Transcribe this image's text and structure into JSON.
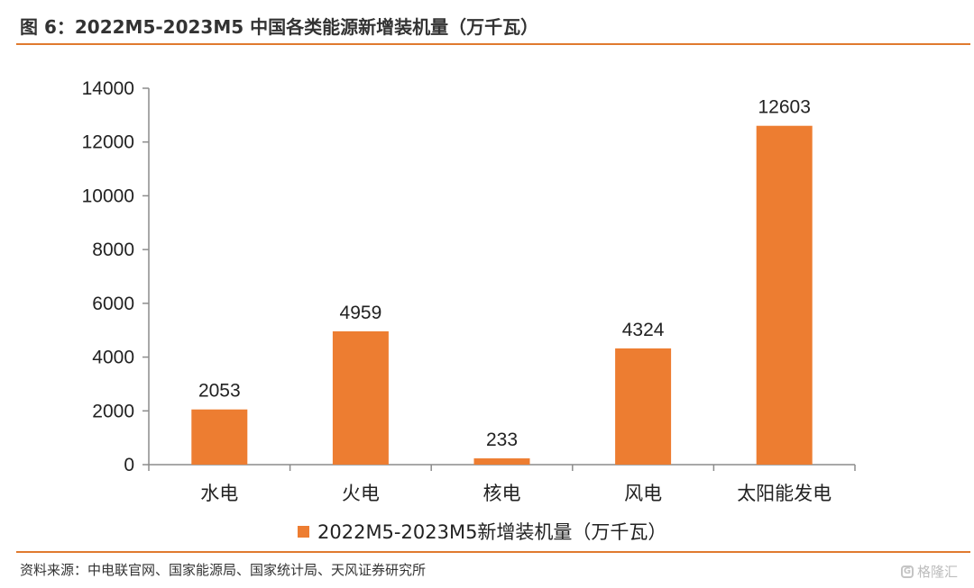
{
  "figure_title": "图 6：2022M5-2023M5 中国各类能源新增装机量（万千瓦）",
  "source": "资料来源：中电联官网、国家能源局、国家统计局、天风证券研究所",
  "watermark": {
    "text": "格隆汇",
    "icon": "glh-logo-icon"
  },
  "colors": {
    "bar": "#ed7d31",
    "rule": "#e07a2f",
    "axis": "#8c8c8c"
  },
  "chart_data": {
    "type": "bar",
    "categories": [
      "水电",
      "火电",
      "核电",
      "风电",
      "太阳能发电"
    ],
    "series": [
      {
        "name": "2022M5-2023M5新增装机量（万千瓦）",
        "values": [
          2053,
          4959,
          233,
          4324,
          12603
        ]
      }
    ],
    "data_labels": [
      "2053",
      "4959",
      "233",
      "4324",
      "12603"
    ],
    "yticks": [
      "0",
      "2000",
      "4000",
      "6000",
      "8000",
      "10000",
      "12000",
      "14000"
    ],
    "ylim": [
      0,
      14000
    ],
    "grid": false,
    "legend_position": "bottom"
  }
}
